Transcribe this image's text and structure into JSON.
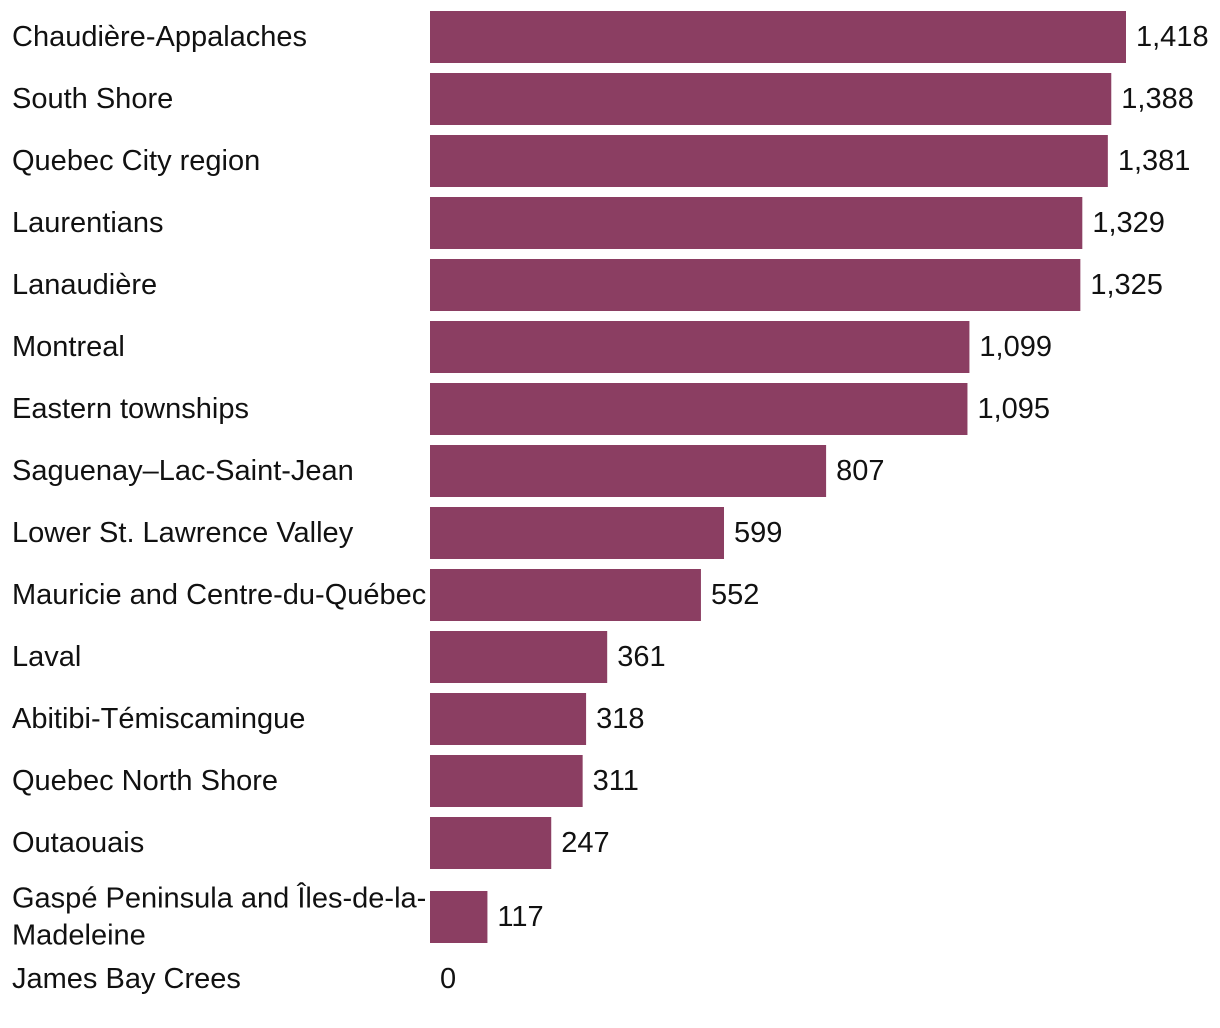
{
  "chart_data": {
    "type": "bar",
    "orientation": "horizontal",
    "title": "",
    "xlabel": "",
    "ylabel": "",
    "bar_color": "#8b3e62",
    "xlim": [
      0,
      1418
    ],
    "categories": [
      "Chaudière-Appalaches",
      "South Shore",
      "Quebec City region",
      "Laurentians",
      "Lanaudière",
      "Montreal",
      "Eastern townships",
      "Saguenay–Lac-Saint-Jean",
      "Lower St. Lawrence Valley",
      "Mauricie and Centre-du-Québec",
      "Laval",
      "Abitibi-Témiscamingue",
      "Quebec North Shore",
      "Outaouais",
      "Gaspé Peninsula and Îles-de-la-Madeleine",
      "James Bay Crees"
    ],
    "values": [
      1418,
      1388,
      1381,
      1329,
      1325,
      1099,
      1095,
      807,
      599,
      552,
      361,
      318,
      311,
      247,
      117,
      0
    ],
    "value_labels": [
      "1,418",
      "1,388",
      "1,381",
      "1,329",
      "1,325",
      "1,099",
      "1,095",
      "807",
      "599",
      "552",
      "361",
      "318",
      "311",
      "247",
      "117",
      "0"
    ]
  }
}
